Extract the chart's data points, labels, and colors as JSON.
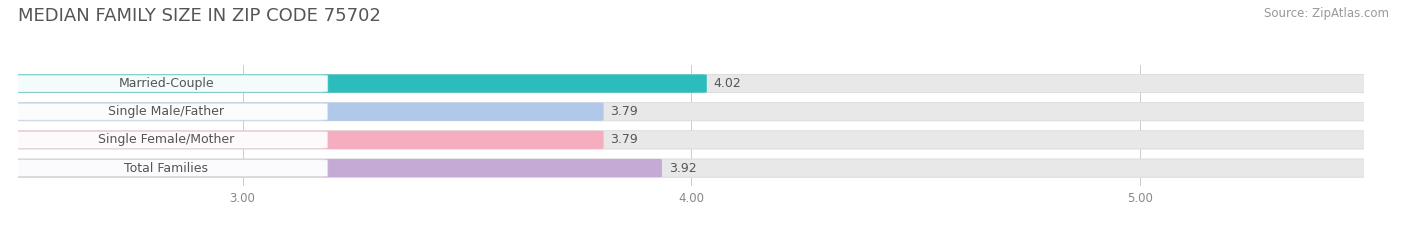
{
  "title": "MEDIAN FAMILY SIZE IN ZIP CODE 75702",
  "source": "Source: ZipAtlas.com",
  "categories": [
    "Married-Couple",
    "Single Male/Father",
    "Single Female/Mother",
    "Total Families"
  ],
  "values": [
    4.02,
    3.79,
    3.79,
    3.92
  ],
  "bar_colors": [
    "#2bbcbc",
    "#b0c8ea",
    "#f5adc0",
    "#c4aad4"
  ],
  "xlim_data": [
    2.5,
    5.5
  ],
  "xlim_display": [
    2.5,
    5.5
  ],
  "xticks": [
    3.0,
    4.0,
    5.0
  ],
  "xtick_labels": [
    "3.00",
    "4.00",
    "5.00"
  ],
  "background_color": "#f7f7f7",
  "bar_bg_color": "#e8e8e8",
  "title_fontsize": 13,
  "source_fontsize": 8.5,
  "value_fontsize": 9,
  "category_fontsize": 9,
  "bar_height": 0.62,
  "figsize": [
    14.06,
    2.33
  ],
  "dpi": 100
}
